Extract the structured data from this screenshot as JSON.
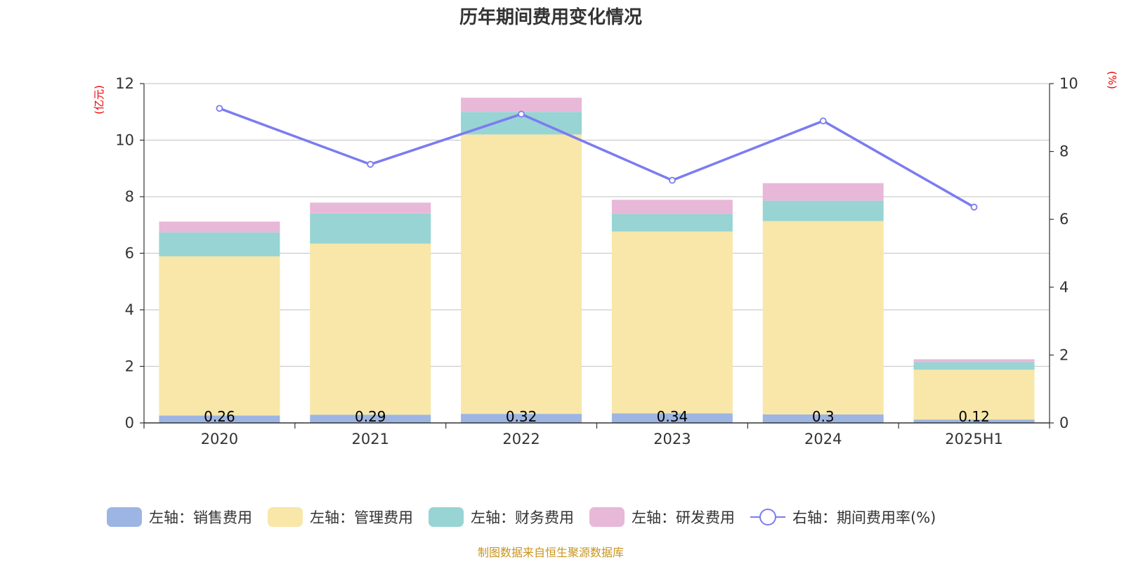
{
  "chart_data": {
    "type": "bar",
    "title": "历年期间费用变化情况",
    "categories": [
      "2020",
      "2021",
      "2022",
      "2023",
      "2024",
      "2025H1"
    ],
    "left_axis": {
      "unit": "(亿元)",
      "ylim": [
        0,
        12
      ],
      "ticks": [
        "0",
        "2",
        "4",
        "6",
        "8",
        "10",
        "12"
      ]
    },
    "right_axis": {
      "unit": "(%)",
      "ylim": [
        0,
        10
      ],
      "ticks": [
        "0",
        "2",
        "4",
        "6",
        "8",
        "10"
      ]
    },
    "grid": true,
    "legend_position": "bottom",
    "series": [
      {
        "name": "左轴：销售费用",
        "kind": "bar",
        "axis": "left",
        "color": "#9db5e3",
        "values": [
          0.26,
          0.29,
          0.32,
          0.34,
          0.3,
          0.12
        ],
        "labels": [
          "0.26",
          "0.29",
          "0.32",
          "0.34",
          "0.3",
          "0.12"
        ]
      },
      {
        "name": "左轴：管理费用",
        "kind": "bar",
        "axis": "left",
        "color": "#f8e7a8",
        "values": [
          5.63,
          6.05,
          9.88,
          6.43,
          6.84,
          1.76
        ]
      },
      {
        "name": "左轴：财务费用",
        "kind": "bar",
        "axis": "left",
        "color": "#98d4d4",
        "values": [
          0.85,
          1.07,
          0.8,
          0.62,
          0.72,
          0.27
        ]
      },
      {
        "name": "左轴：研发费用",
        "kind": "bar",
        "axis": "left",
        "color": "#e8b8d8",
        "values": [
          0.38,
          0.38,
          0.5,
          0.5,
          0.62,
          0.1
        ]
      },
      {
        "name": "右轴：期间费用率(%)",
        "kind": "line",
        "axis": "right",
        "color": "#7b7cf0",
        "values": [
          9.27,
          7.62,
          9.1,
          7.15,
          8.9,
          6.36
        ]
      }
    ],
    "source": "制图数据来自恒生聚源数据库"
  }
}
